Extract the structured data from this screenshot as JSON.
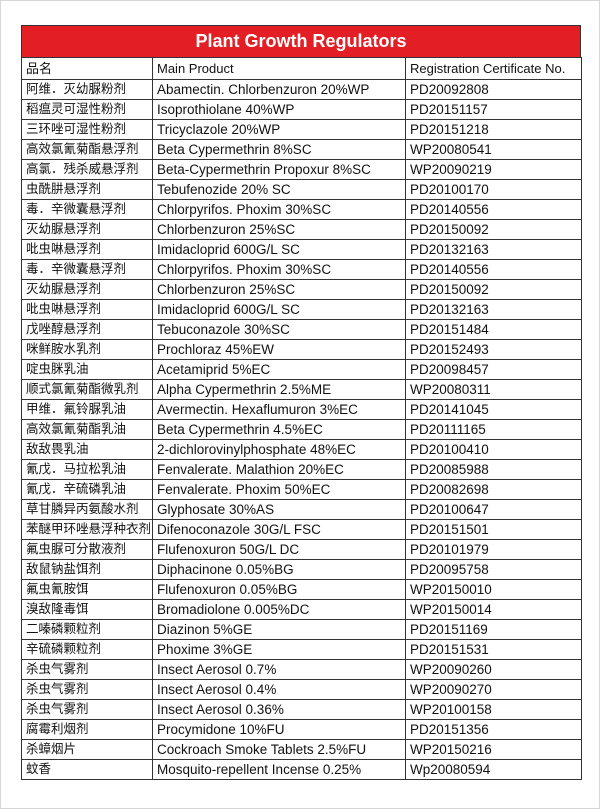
{
  "title": "Plant Growth Regulators",
  "columns": [
    "品名",
    "Main Product",
    "Registration Certificate No."
  ],
  "rows": [
    [
      "阿维．灭幼脲粉剂",
      "Abamectin.  Chlorbenzuron 20%WP",
      "PD20092808"
    ],
    [
      "稻瘟灵可湿性粉剂",
      "Isoprothiolane 40%WP",
      "PD20151157"
    ],
    [
      "三环唑可湿性粉剂",
      "Tricyclazole 20%WP",
      "PD20151218"
    ],
    [
      "高效氯氰菊酯悬浮剂",
      "Beta Cypermethrin 8%SC",
      "WP20080541"
    ],
    [
      "高氯．残杀威悬浮剂",
      "Beta-Cypermethrin Propoxur 8%SC",
      "WP20090219"
    ],
    [
      "虫酰肼悬浮剂",
      "Tebufenozide 20% SC",
      "PD20100170"
    ],
    [
      "毒．辛微囊悬浮剂",
      "Chlorpyrifos.  Phoxim 30%SC",
      "PD20140556"
    ],
    [
      "灭幼脲悬浮剂",
      "Chlorbenzuron 25%SC",
      "PD20150092"
    ],
    [
      "吡虫啉悬浮剂",
      "Imidacloprid 600G/L SC",
      "PD20132163"
    ],
    [
      "毒．辛微囊悬浮剂",
      "Chlorpyrifos.  Phoxim 30%SC",
      "PD20140556"
    ],
    [
      "灭幼脲悬浮剂",
      "Chlorbenzuron 25%SC",
      "PD20150092"
    ],
    [
      "吡虫啉悬浮剂",
      "Imidacloprid 600G/L SC",
      "PD20132163"
    ],
    [
      "戊唑醇悬浮剂",
      "Tebuconazole 30%SC",
      "PD20151484"
    ],
    [
      "咪鲜胺水乳剂",
      "Prochloraz 45%EW",
      "PD20152493"
    ],
    [
      "啶虫脒乳油",
      "Acetamiprid 5%EC",
      "PD20098457"
    ],
    [
      "顺式氯氰菊酯微乳剂",
      "Alpha Cypermethrin 2.5%ME",
      "WP20080311"
    ],
    [
      "甲维．氟铃脲乳油",
      "Avermectin.  Hexaflumuron 3%EC",
      "PD20141045"
    ],
    [
      "高效氯氰菊酯乳油",
      "Beta Cypermethrin 4.5%EC",
      "PD20111165"
    ],
    [
      "敌敌畏乳油",
      "2-dichlorovinylphosphate 48%EC",
      "PD20100410"
    ],
    [
      "氰戊．马拉松乳油",
      "Fenvalerate.  Malathion 20%EC",
      "PD20085988"
    ],
    [
      "氰戊．辛硫磷乳油",
      "Fenvalerate.  Phoxim 50%EC",
      "PD20082698"
    ],
    [
      "草甘膦异丙氨酸水剂",
      "Glyphosate 30%AS",
      "PD20100647"
    ],
    [
      "苯醚甲环唑悬浮种衣剂",
      "Difenoconazole 30G/L FSC",
      "PD20151501"
    ],
    [
      "氟虫脲可分散液剂",
      "Flufenoxuron 50G/L DC",
      "PD20101979"
    ],
    [
      "敌鼠钠盐饵剂",
      "Diphacinone 0.05%BG",
      "PD20095758"
    ],
    [
      "氟虫氰胺饵",
      "Flufenoxuron 0.05%BG",
      "WP20150010"
    ],
    [
      "溴敌隆毒饵",
      "Bromadiolone 0.005%DC",
      "WP20150014"
    ],
    [
      "二嗪磷颗粒剂",
      "Diazinon 5%GE",
      "PD20151169"
    ],
    [
      "辛硫磷颗粒剂",
      "Phoxime 3%GE",
      "PD20151531"
    ],
    [
      "杀虫气雾剂",
      "Insect Aerosol 0.7%",
      "WP20090260"
    ],
    [
      "杀虫气雾剂",
      "Insect Aerosol 0.4%",
      "WP20090270"
    ],
    [
      "杀虫气雾剂",
      "Insect Aerosol 0.36%",
      "WP20100158"
    ],
    [
      "腐霉利烟剂",
      "Procymidone 10%FU",
      "PD20151356"
    ],
    [
      "杀蟑烟片",
      "Cockroach Smoke Tablets 2.5%FU",
      "WP20150216"
    ],
    [
      "蚊香",
      "Mosquito-repellent Incense 0.25%",
      "Wp20080594"
    ]
  ],
  "colors": {
    "title_bar": "#e31e24",
    "title_text": "#ffffff",
    "border": "#333333"
  }
}
